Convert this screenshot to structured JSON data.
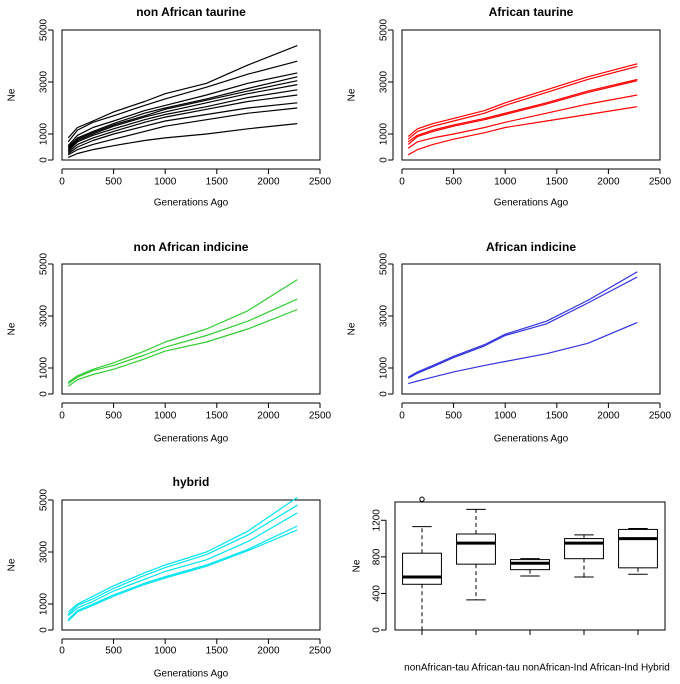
{
  "chart_data": [
    {
      "type": "line",
      "title": "non African taurine",
      "xlabel": "Generations Ago",
      "ylabel": "Ne",
      "xlim": [
        0,
        2500
      ],
      "ylim": [
        0,
        5000
      ],
      "xticks": [
        0,
        500,
        1000,
        1500,
        2000,
        2500
      ],
      "yticks": [
        0,
        1000,
        3000,
        5000
      ],
      "color": "#000000",
      "x": [
        60,
        150,
        300,
        500,
        800,
        1000,
        1400,
        1800,
        2280
      ],
      "series": [
        {
          "name": "s1",
          "values": [
            850,
            1250,
            1500,
            1850,
            2250,
            2550,
            2950,
            3650,
            4400
          ]
        },
        {
          "name": "s2",
          "values": [
            700,
            1150,
            1450,
            1700,
            2100,
            2350,
            2800,
            3300,
            3800
          ]
        },
        {
          "name": "s3",
          "values": [
            550,
            950,
            1250,
            1500,
            1900,
            2100,
            2500,
            2950,
            3350
          ]
        },
        {
          "name": "s4",
          "values": [
            500,
            850,
            1100,
            1400,
            1800,
            2000,
            2350,
            2750,
            3200
          ]
        },
        {
          "name": "s5",
          "values": [
            450,
            800,
            1050,
            1350,
            1700,
            1950,
            2300,
            2650,
            3050
          ]
        },
        {
          "name": "s6",
          "values": [
            400,
            750,
            1000,
            1300,
            1650,
            1850,
            2200,
            2550,
            2900
          ]
        },
        {
          "name": "s7",
          "values": [
            350,
            700,
            950,
            1200,
            1550,
            1750,
            2050,
            2400,
            2700
          ]
        },
        {
          "name": "s8",
          "values": [
            300,
            600,
            850,
            1100,
            1450,
            1650,
            1950,
            2250,
            2500
          ]
        },
        {
          "name": "s9",
          "values": [
            250,
            500,
            750,
            1000,
            1300,
            1500,
            1750,
            2000,
            2200
          ]
        },
        {
          "name": "s10",
          "values": [
            200,
            400,
            600,
            800,
            1100,
            1300,
            1550,
            1800,
            2000
          ]
        },
        {
          "name": "s11",
          "values": [
            100,
            250,
            400,
            550,
            750,
            850,
            1000,
            1200,
            1400
          ]
        }
      ]
    },
    {
      "type": "line",
      "title": "African taurine",
      "xlabel": "Generations Ago",
      "ylabel": "Ne",
      "xlim": [
        0,
        2500
      ],
      "ylim": [
        0,
        5000
      ],
      "xticks": [
        0,
        500,
        1000,
        1500,
        2000,
        2500
      ],
      "yticks": [
        0,
        1000,
        3000,
        5000
      ],
      "color": "#ff0000",
      "x": [
        60,
        150,
        300,
        500,
        800,
        1000,
        1400,
        1800,
        2280
      ],
      "series": [
        {
          "name": "s1",
          "values": [
            900,
            1200,
            1400,
            1600,
            1900,
            2200,
            2700,
            3200,
            3700
          ]
        },
        {
          "name": "s2",
          "values": [
            800,
            1100,
            1300,
            1500,
            1800,
            2100,
            2600,
            3100,
            3600
          ]
        },
        {
          "name": "s3",
          "values": [
            700,
            950,
            1150,
            1350,
            1600,
            1800,
            2200,
            2650,
            3100
          ]
        },
        {
          "name": "s4",
          "values": [
            600,
            900,
            1100,
            1300,
            1550,
            1750,
            2150,
            2600,
            3050
          ]
        },
        {
          "name": "s5",
          "values": [
            450,
            700,
            850,
            1000,
            1250,
            1450,
            1800,
            2150,
            2500
          ]
        },
        {
          "name": "s6",
          "values": [
            200,
            400,
            600,
            800,
            1050,
            1250,
            1500,
            1750,
            2050
          ]
        }
      ]
    },
    {
      "type": "line",
      "title": "non African indicine",
      "xlabel": "Generations Ago",
      "ylabel": "Ne",
      "xlim": [
        0,
        2500
      ],
      "ylim": [
        0,
        5000
      ],
      "xticks": [
        0,
        500,
        1000,
        1500,
        2000,
        2500
      ],
      "yticks": [
        0,
        1000,
        3000,
        5000
      ],
      "color": "#33cc33",
      "x": [
        60,
        150,
        300,
        500,
        800,
        1000,
        1400,
        1800,
        2280
      ],
      "series": [
        {
          "name": "s1",
          "values": [
            450,
            700,
            950,
            1200,
            1650,
            2000,
            2500,
            3200,
            4400
          ]
        },
        {
          "name": "s2",
          "values": [
            400,
            650,
            900,
            1100,
            1500,
            1800,
            2250,
            2800,
            3650
          ]
        },
        {
          "name": "s3",
          "values": [
            300,
            550,
            750,
            950,
            1350,
            1650,
            2000,
            2500,
            3250
          ]
        }
      ]
    },
    {
      "type": "line",
      "title": "African indicine",
      "xlabel": "Generations Ago",
      "ylabel": "Ne",
      "xlim": [
        0,
        2500
      ],
      "ylim": [
        0,
        5000
      ],
      "xticks": [
        0,
        500,
        1000,
        1500,
        2000,
        2500
      ],
      "yticks": [
        0,
        1000,
        3000,
        5000
      ],
      "color": "#3333dd",
      "x": [
        60,
        150,
        300,
        500,
        800,
        1000,
        1400,
        1800,
        2280
      ],
      "series": [
        {
          "name": "s1",
          "values": [
            650,
            850,
            1100,
            1450,
            1900,
            2300,
            2800,
            3600,
            4700
          ]
        },
        {
          "name": "s2",
          "values": [
            600,
            800,
            1050,
            1400,
            1850,
            2250,
            2700,
            3500,
            4500
          ]
        },
        {
          "name": "s3",
          "values": [
            400,
            500,
            650,
            850,
            1100,
            1250,
            1550,
            1950,
            2750
          ]
        }
      ]
    },
    {
      "type": "line",
      "title": "hybrid",
      "xlabel": "Generations Ago",
      "ylabel": "Ne",
      "xlim": [
        0,
        2500
      ],
      "ylim": [
        0,
        5000
      ],
      "xticks": [
        0,
        500,
        1000,
        1500,
        2000,
        2500
      ],
      "yticks": [
        0,
        1000,
        3000,
        5000
      ],
      "color": "#00e5ee",
      "x": [
        60,
        150,
        300,
        500,
        800,
        1000,
        1400,
        1800,
        2280
      ],
      "series": [
        {
          "name": "s1",
          "values": [
            700,
            1000,
            1300,
            1700,
            2200,
            2500,
            3000,
            3800,
            5100
          ]
        },
        {
          "name": "s2",
          "values": [
            600,
            950,
            1200,
            1600,
            2100,
            2400,
            2900,
            3650,
            4800
          ]
        },
        {
          "name": "s3",
          "values": [
            550,
            850,
            1100,
            1500,
            1950,
            2250,
            2700,
            3400,
            4500
          ]
        },
        {
          "name": "s4",
          "values": [
            400,
            750,
            1000,
            1350,
            1800,
            2050,
            2500,
            3100,
            4000
          ]
        },
        {
          "name": "s5",
          "values": [
            350,
            700,
            950,
            1300,
            1750,
            2000,
            2450,
            3050,
            3850
          ]
        }
      ]
    },
    {
      "type": "box",
      "title": "",
      "xlabel": "",
      "ylabel": "Ne",
      "ylim": [
        0,
        1400
      ],
      "yticks": [
        0,
        400,
        800,
        1200
      ],
      "category_axis_label": "nonAfrican-tau African-tau nonAfrican-Ind African-Ind Hybrid",
      "categories": [
        "nonAfrican-tau",
        "African-tau",
        "nonAfrican-Ind",
        "African-Ind",
        "Hybrid"
      ],
      "boxes": [
        {
          "name": "nonAfrican-tau",
          "min": 0,
          "q1": 500,
          "median": 580,
          "q3": 840,
          "max": 1130,
          "outliers": [
            1430
          ]
        },
        {
          "name": "African-tau",
          "min": 330,
          "q1": 720,
          "median": 950,
          "q3": 1050,
          "max": 1320,
          "outliers": []
        },
        {
          "name": "nonAfrican-Ind",
          "min": 590,
          "q1": 660,
          "median": 730,
          "q3": 770,
          "max": 780,
          "outliers": []
        },
        {
          "name": "African-Ind",
          "min": 580,
          "q1": 780,
          "median": 950,
          "q3": 1000,
          "max": 1040,
          "outliers": []
        },
        {
          "name": "Hybrid",
          "min": 610,
          "q1": 680,
          "median": 1000,
          "q3": 1100,
          "max": 1110,
          "outliers": []
        }
      ]
    }
  ]
}
